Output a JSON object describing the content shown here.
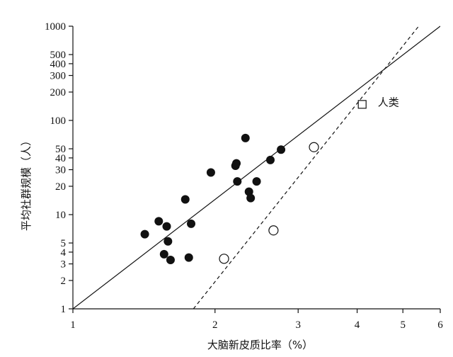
{
  "chart_data": {
    "type": "scatter",
    "title": "",
    "xlabel": "大脑新皮质比率（%）",
    "ylabel": "平均社群规模（人）",
    "x_scale": "log",
    "y_scale": "log",
    "xlim": [
      1,
      6
    ],
    "ylim": [
      1,
      1000
    ],
    "x_ticks": [
      1,
      2,
      3,
      4,
      5,
      6
    ],
    "y_ticks": [
      1,
      2,
      3,
      4,
      5,
      10,
      20,
      30,
      40,
      50,
      100,
      200,
      300,
      400,
      500,
      1000
    ],
    "grid": false,
    "series": [
      {
        "marker": "filled-circle",
        "points": [
          {
            "x": 1.42,
            "y": 6.2
          },
          {
            "x": 1.52,
            "y": 8.5
          },
          {
            "x": 1.58,
            "y": 7.5
          },
          {
            "x": 1.59,
            "y": 5.2
          },
          {
            "x": 1.56,
            "y": 3.8
          },
          {
            "x": 1.61,
            "y": 3.3
          },
          {
            "x": 1.73,
            "y": 14.5
          },
          {
            "x": 1.78,
            "y": 8.0
          },
          {
            "x": 1.76,
            "y": 3.5
          },
          {
            "x": 1.96,
            "y": 28.0
          },
          {
            "x": 2.21,
            "y": 33.0
          },
          {
            "x": 2.22,
            "y": 35.0
          },
          {
            "x": 2.23,
            "y": 22.5
          },
          {
            "x": 2.32,
            "y": 65.0
          },
          {
            "x": 2.36,
            "y": 17.5
          },
          {
            "x": 2.38,
            "y": 15.0
          },
          {
            "x": 2.45,
            "y": 22.5
          },
          {
            "x": 2.62,
            "y": 38.0
          },
          {
            "x": 2.76,
            "y": 49.0
          }
        ]
      },
      {
        "marker": "open-circle",
        "points": [
          {
            "x": 2.09,
            "y": 3.4
          },
          {
            "x": 2.66,
            "y": 6.8
          },
          {
            "x": 3.24,
            "y": 52.0
          }
        ]
      },
      {
        "name": "人类",
        "marker": "open-square",
        "points": [
          {
            "x": 4.1,
            "y": 148.0
          }
        ]
      }
    ],
    "lines": [
      {
        "style": "solid",
        "from": [
          1.0,
          1.0
        ],
        "to": [
          6.0,
          1000.0
        ]
      },
      {
        "style": "dashed",
        "from": [
          1.8,
          1.0
        ],
        "to": [
          5.4,
          1000.0
        ]
      }
    ],
    "annotations": [
      {
        "text": "人类",
        "x": 4.1,
        "y": 148.0
      }
    ]
  }
}
